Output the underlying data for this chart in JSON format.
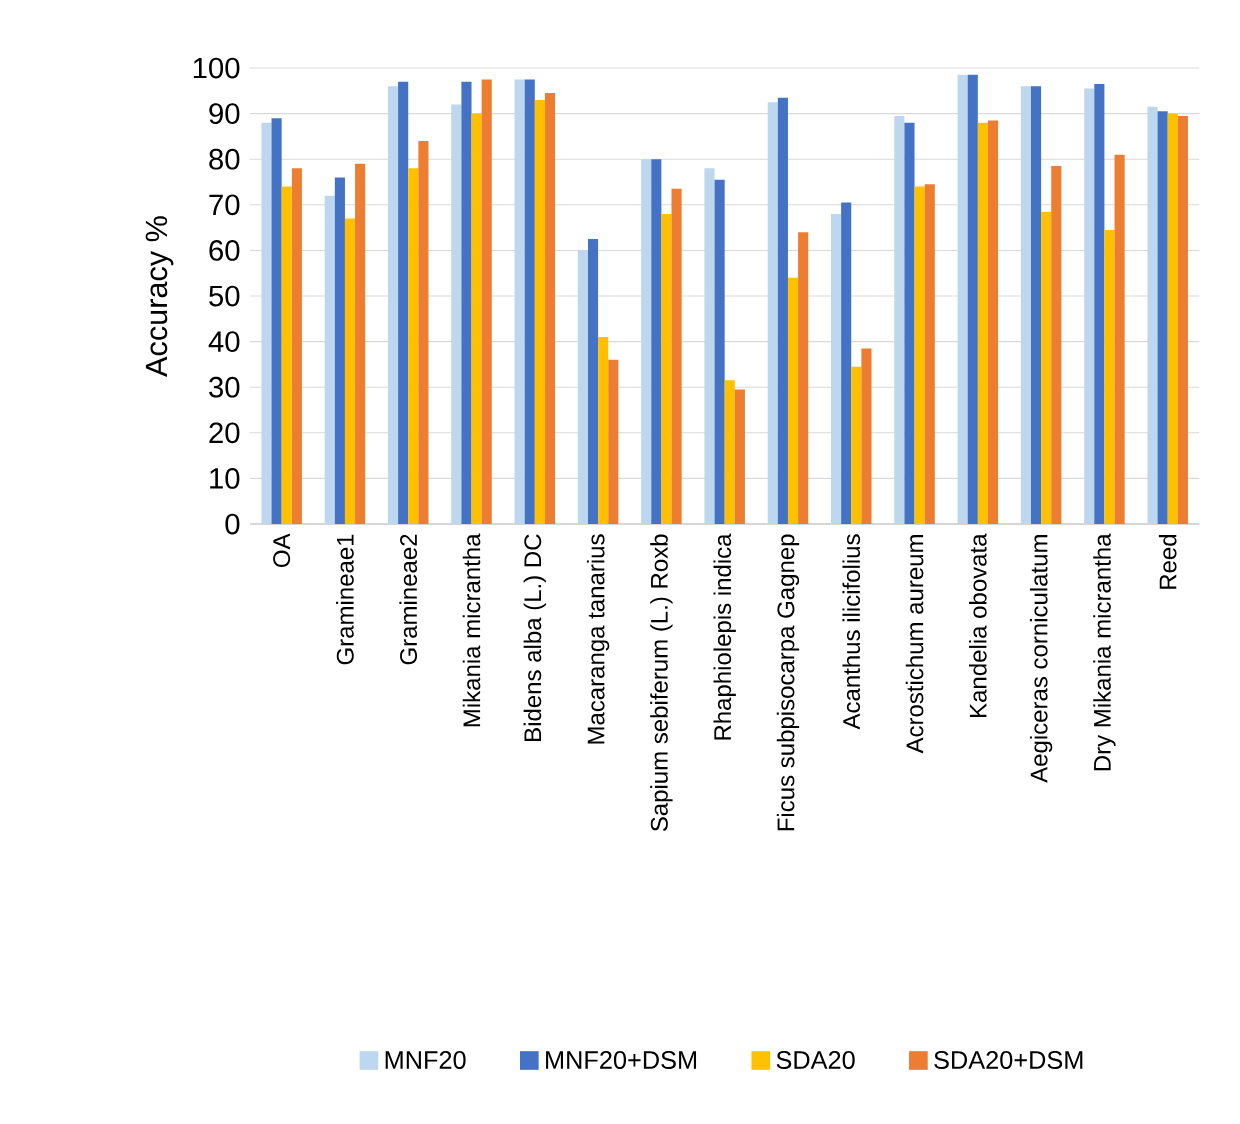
{
  "chart_data": {
    "type": "bar",
    "ylabel": "Accuracy %",
    "categories": [
      "OA",
      "Gramineae1",
      "Gramineae2",
      "Mikania micrantha",
      "Bidens alba (L.) DC",
      "Macaranga tanarius",
      "Sapium sebiferum (L.) Roxb",
      "Rhaphiolepis indica",
      "Ficus subpisocarpa Gagnep",
      "Acanthus ilicifolius",
      "Acrostichum aureum",
      "Kandelia obovata",
      "Aegiceras corniculatum",
      "Dry Mikania micrantha",
      "Reed"
    ],
    "series": [
      {
        "name": "MNF20",
        "color": "#bdd7ee",
        "values": [
          88,
          72,
          96,
          92,
          97.5,
          60,
          80,
          78,
          92.5,
          68,
          89.5,
          98.5,
          96,
          95.5,
          91.5
        ]
      },
      {
        "name": "MNF20+DSM",
        "color": "#4472c4",
        "values": [
          89,
          76,
          97,
          97,
          97.5,
          62.5,
          80,
          75.5,
          93.5,
          70.5,
          88,
          98.5,
          96,
          96.5,
          90.5
        ]
      },
      {
        "name": "SDA20",
        "color": "#ffc000",
        "values": [
          74,
          67,
          78,
          90,
          93,
          41,
          68,
          31.5,
          54,
          34.5,
          74,
          88,
          68.5,
          64.5,
          90
        ]
      },
      {
        "name": "SDA20+DSM",
        "color": "#ed7d31",
        "values": [
          78,
          79,
          84,
          97.5,
          94.5,
          36,
          73.5,
          29.5,
          64,
          38.5,
          74.5,
          88.5,
          78.5,
          81,
          89.5
        ]
      }
    ],
    "ylim": [
      0,
      100
    ],
    "yticks": [
      0,
      10,
      20,
      30,
      40,
      50,
      60,
      70,
      80,
      90,
      100
    ],
    "grid": "y",
    "legend": "bottom"
  }
}
